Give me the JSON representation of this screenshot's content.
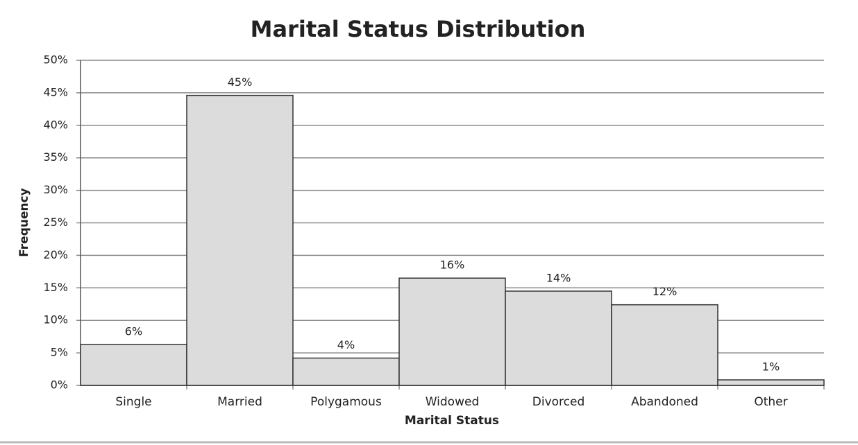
{
  "chart_data": {
    "type": "bar",
    "title": "Marital Status Distribution",
    "x_label": "Marital Status",
    "y_label": "Frequency",
    "categories": [
      "Single",
      "Married",
      "Polygamous",
      "Widowed",
      "Divorced",
      "Abandoned",
      "Other"
    ],
    "values": [
      6.3,
      44.6,
      4.2,
      16.5,
      14.5,
      12.4,
      0.85
    ],
    "value_labels": [
      "6%",
      "45%",
      "4%",
      "16%",
      "14%",
      "12%",
      "1%"
    ],
    "color": "#dcdcdc",
    "ylim": [
      0,
      50
    ],
    "yticks": [
      {
        "value": 0,
        "label": "0%"
      },
      {
        "value": 5,
        "label": "5%"
      },
      {
        "value": 10,
        "label": "10%"
      },
      {
        "value": 15,
        "label": "15%"
      },
      {
        "value": 20,
        "label": "20%"
      },
      {
        "value": 25,
        "label": "25%"
      },
      {
        "value": 30,
        "label": "30%"
      },
      {
        "value": 35,
        "label": "35%"
      },
      {
        "value": 40,
        "label": "40%"
      },
      {
        "value": 45,
        "label": "45%"
      },
      {
        "value": 50,
        "label": "50%"
      }
    ],
    "grid": true
  }
}
